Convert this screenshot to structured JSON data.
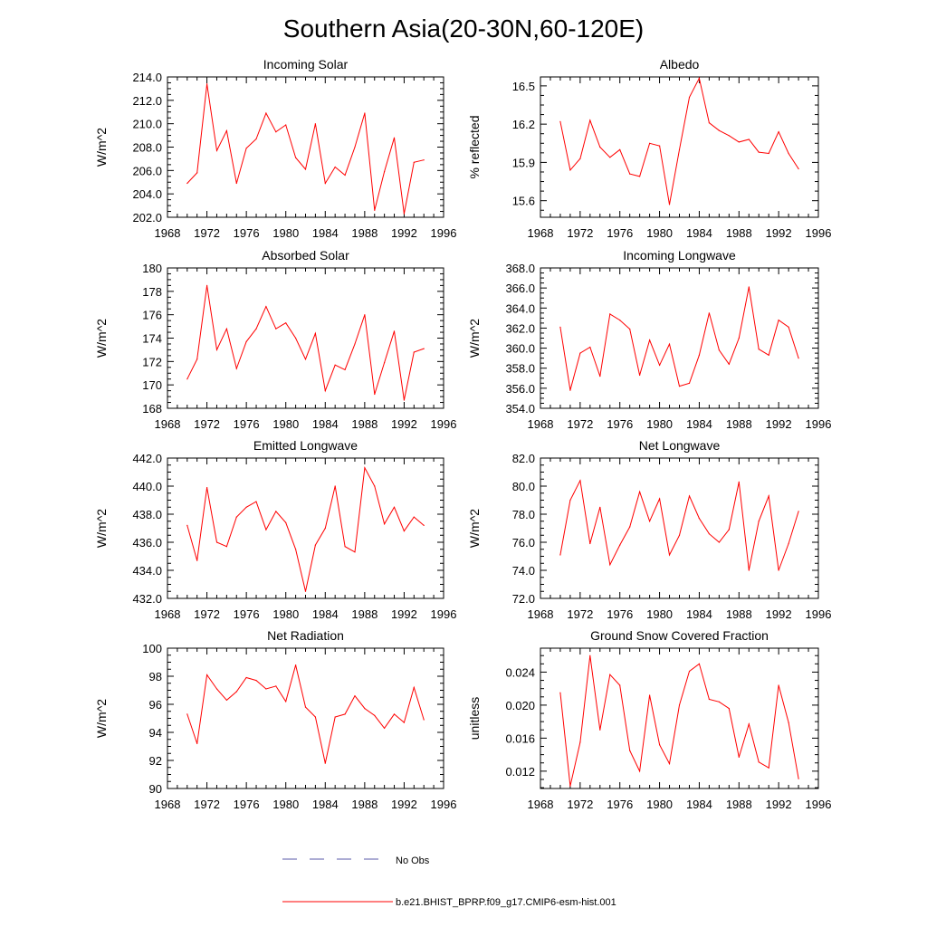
{
  "figure": {
    "title": "Southern Asia(20-30N,60-120E)",
    "legend": [
      {
        "label": "No Obs",
        "color": "#5a5aa8",
        "style": "dashed"
      },
      {
        "label": "b.e21.BHIST_BPRP.f09_g17.CMIP6-esm-hist.001",
        "color": "#ff0000",
        "style": "solid"
      }
    ]
  },
  "chart_data": [
    {
      "type": "line",
      "title": "Incoming Solar",
      "ylabel": "W/m^2",
      "xlim": [
        1968,
        1996
      ],
      "ylim": [
        202.0,
        214.0
      ],
      "x_ticks": [
        "1968",
        "1972",
        "1976",
        "1980",
        "1984",
        "1988",
        "1992",
        "1996"
      ],
      "y_ticks": [
        "202.0",
        "204.0",
        "206.0",
        "208.0",
        "210.0",
        "212.0",
        "214.0"
      ],
      "x": [
        1970,
        1971,
        1972,
        1973,
        1974,
        1975,
        1976,
        1977,
        1978,
        1979,
        1980,
        1981,
        1982,
        1983,
        1984,
        1985,
        1986,
        1987,
        1988,
        1989,
        1990,
        1991,
        1992,
        1993,
        1994
      ],
      "series": [
        {
          "name": "b.e21.BHIST_BPRP.f09_g17.CMIP6-esm-hist.001",
          "color": "#ff0000",
          "values": [
            204.9,
            205.8,
            213.4,
            207.7,
            209.4,
            204.9,
            207.9,
            208.7,
            210.9,
            209.3,
            209.9,
            207.1,
            206.1,
            210.0,
            204.9,
            206.3,
            205.6,
            208.0,
            210.9,
            202.6,
            205.9,
            208.8,
            202.3,
            206.7,
            206.9
          ]
        }
      ]
    },
    {
      "type": "line",
      "title": "Albedo",
      "ylabel": "% reflected",
      "xlim": [
        1968,
        1996
      ],
      "ylim": [
        15.47,
        16.57
      ],
      "x_ticks": [
        "1968",
        "1972",
        "1976",
        "1980",
        "1984",
        "1988",
        "1992",
        "1996"
      ],
      "y_ticks": [
        "15.6",
        "15.9",
        "16.2",
        "16.5"
      ],
      "x": [
        1970,
        1971,
        1972,
        1973,
        1974,
        1975,
        1976,
        1977,
        1978,
        1979,
        1980,
        1981,
        1982,
        1983,
        1984,
        1985,
        1986,
        1987,
        1988,
        1989,
        1990,
        1991,
        1992,
        1993,
        1994
      ],
      "series": [
        {
          "name": "b.e21.BHIST_BPRP.f09_g17.CMIP6-esm-hist.001",
          "color": "#ff0000",
          "values": [
            16.22,
            15.84,
            15.93,
            16.23,
            16.02,
            15.94,
            16.0,
            15.81,
            15.79,
            16.05,
            16.03,
            15.57,
            16.0,
            16.41,
            16.56,
            16.21,
            16.15,
            16.11,
            16.06,
            16.08,
            15.98,
            15.97,
            16.14,
            15.97,
            15.85
          ]
        }
      ]
    },
    {
      "type": "line",
      "title": "Absorbed Solar",
      "ylabel": "W/m^2",
      "xlim": [
        1968,
        1996
      ],
      "ylim": [
        168,
        180
      ],
      "x_ticks": [
        "1968",
        "1972",
        "1976",
        "1980",
        "1984",
        "1988",
        "1992",
        "1996"
      ],
      "y_ticks": [
        "168",
        "170",
        "172",
        "174",
        "176",
        "178",
        "180"
      ],
      "x": [
        1970,
        1971,
        1972,
        1973,
        1974,
        1975,
        1976,
        1977,
        1978,
        1979,
        1980,
        1981,
        1982,
        1983,
        1984,
        1985,
        1986,
        1987,
        1988,
        1989,
        1990,
        1991,
        1992,
        1993,
        1994
      ],
      "series": [
        {
          "name": "b.e21.BHIST_BPRP.f09_g17.CMIP6-esm-hist.001",
          "color": "#ff0000",
          "values": [
            170.5,
            172.2,
            178.5,
            173.0,
            174.8,
            171.4,
            173.7,
            174.8,
            176.7,
            174.8,
            175.3,
            174.0,
            172.2,
            174.4,
            169.5,
            171.7,
            171.3,
            173.5,
            176.0,
            169.2,
            171.9,
            174.6,
            168.7,
            172.8,
            173.1
          ]
        }
      ]
    },
    {
      "type": "line",
      "title": "Incoming Longwave",
      "ylabel": "W/m^2",
      "xlim": [
        1968,
        1996
      ],
      "ylim": [
        354.0,
        368.0
      ],
      "x_ticks": [
        "1968",
        "1972",
        "1976",
        "1980",
        "1984",
        "1988",
        "1992",
        "1996"
      ],
      "y_ticks": [
        "354.0",
        "356.0",
        "358.0",
        "360.0",
        "362.0",
        "364.0",
        "366.0",
        "368.0"
      ],
      "x": [
        1970,
        1971,
        1972,
        1973,
        1974,
        1975,
        1976,
        1977,
        1978,
        1979,
        1980,
        1981,
        1982,
        1983,
        1984,
        1985,
        1986,
        1987,
        1988,
        1989,
        1990,
        1991,
        1992,
        1993,
        1994
      ],
      "series": [
        {
          "name": "b.e21.BHIST_BPRP.f09_g17.CMIP6-esm-hist.001",
          "color": "#ff0000",
          "values": [
            362.1,
            355.8,
            359.5,
            360.1,
            357.2,
            363.4,
            362.8,
            361.9,
            357.3,
            360.8,
            358.3,
            360.4,
            356.2,
            356.5,
            359.3,
            363.5,
            359.8,
            358.4,
            361.0,
            366.1,
            359.9,
            359.3,
            362.8,
            362.1,
            359.0
          ]
        }
      ]
    },
    {
      "type": "line",
      "title": "Emitted Longwave",
      "ylabel": "W/m^2",
      "xlim": [
        1968,
        1996
      ],
      "ylim": [
        432.0,
        442.0
      ],
      "x_ticks": [
        "1968",
        "1972",
        "1976",
        "1980",
        "1984",
        "1988",
        "1992",
        "1996"
      ],
      "y_ticks": [
        "432.0",
        "434.0",
        "436.0",
        "438.0",
        "440.0",
        "442.0"
      ],
      "x": [
        1970,
        1971,
        1972,
        1973,
        1974,
        1975,
        1976,
        1977,
        1978,
        1979,
        1980,
        1981,
        1982,
        1983,
        1984,
        1985,
        1986,
        1987,
        1988,
        1989,
        1990,
        1991,
        1992,
        1993,
        1994
      ],
      "series": [
        {
          "name": "b.e21.BHIST_BPRP.f09_g17.CMIP6-esm-hist.001",
          "color": "#ff0000",
          "values": [
            437.2,
            434.7,
            439.9,
            436.0,
            435.7,
            437.8,
            438.5,
            438.9,
            436.9,
            438.2,
            437.4,
            435.5,
            432.5,
            435.8,
            437.0,
            440.0,
            435.7,
            435.3,
            441.3,
            440.0,
            437.3,
            438.5,
            436.8,
            437.8,
            437.2
          ]
        }
      ]
    },
    {
      "type": "line",
      "title": "Net Longwave",
      "ylabel": "W/m^2",
      "xlim": [
        1968,
        1996
      ],
      "ylim": [
        72.0,
        82.0
      ],
      "x_ticks": [
        "1968",
        "1972",
        "1976",
        "1980",
        "1984",
        "1988",
        "1992",
        "1996"
      ],
      "y_ticks": [
        "72.0",
        "74.0",
        "76.0",
        "78.0",
        "80.0",
        "82.0"
      ],
      "x": [
        1970,
        1971,
        1972,
        1973,
        1974,
        1975,
        1976,
        1977,
        1978,
        1979,
        1980,
        1981,
        1982,
        1983,
        1984,
        1985,
        1986,
        1987,
        1988,
        1989,
        1990,
        1991,
        1992,
        1993,
        1994
      ],
      "series": [
        {
          "name": "b.e21.BHIST_BPRP.f09_g17.CMIP6-esm-hist.001",
          "color": "#ff0000",
          "values": [
            75.1,
            79.0,
            80.4,
            75.9,
            78.5,
            74.4,
            75.8,
            77.1,
            79.6,
            77.5,
            79.1,
            75.1,
            76.5,
            79.3,
            77.7,
            76.6,
            76.0,
            76.9,
            80.3,
            74.0,
            77.5,
            79.3,
            74.0,
            75.9,
            78.2
          ]
        }
      ]
    },
    {
      "type": "line",
      "title": "Net Radiation",
      "ylabel": "W/m^2",
      "xlim": [
        1968,
        1996
      ],
      "ylim": [
        90,
        100
      ],
      "x_ticks": [
        "1968",
        "1972",
        "1976",
        "1980",
        "1984",
        "1988",
        "1992",
        "1996"
      ],
      "y_ticks": [
        "90",
        "92",
        "94",
        "96",
        "98",
        "100"
      ],
      "x": [
        1970,
        1971,
        1972,
        1973,
        1974,
        1975,
        1976,
        1977,
        1978,
        1979,
        1980,
        1981,
        1982,
        1983,
        1984,
        1985,
        1986,
        1987,
        1988,
        1989,
        1990,
        1991,
        1992,
        1993,
        1994
      ],
      "series": [
        {
          "name": "b.e21.BHIST_BPRP.f09_g17.CMIP6-esm-hist.001",
          "color": "#ff0000",
          "values": [
            95.3,
            93.2,
            98.1,
            97.1,
            96.3,
            96.9,
            97.9,
            97.7,
            97.1,
            97.3,
            96.2,
            98.8,
            95.8,
            95.1,
            91.8,
            95.1,
            95.3,
            96.6,
            95.7,
            95.2,
            94.3,
            95.3,
            94.7,
            97.2,
            94.9
          ]
        }
      ]
    },
    {
      "type": "line",
      "title": "Ground Snow Covered Fraction",
      "ylabel": "unitless",
      "xlim": [
        1968,
        1996
      ],
      "ylim": [
        0.0099,
        0.0269
      ],
      "x_ticks": [
        "1968",
        "1972",
        "1976",
        "1980",
        "1984",
        "1988",
        "1992",
        "1996"
      ],
      "y_ticks": [
        "0.012",
        "0.016",
        "0.020",
        "0.024"
      ],
      "x": [
        1970,
        1971,
        1972,
        1973,
        1974,
        1975,
        1976,
        1977,
        1978,
        1979,
        1980,
        1981,
        1982,
        1983,
        1984,
        1985,
        1986,
        1987,
        1988,
        1989,
        1990,
        1991,
        1992,
        1993,
        1994
      ],
      "series": [
        {
          "name": "b.e21.BHIST_BPRP.f09_g17.CMIP6-esm-hist.001",
          "color": "#ff0000",
          "values": [
            0.0215,
            0.0102,
            0.0155,
            0.026,
            0.017,
            0.0237,
            0.0224,
            0.0145,
            0.012,
            0.0212,
            0.0152,
            0.0129,
            0.02,
            0.0241,
            0.025,
            0.0207,
            0.0204,
            0.0196,
            0.0137,
            0.0177,
            0.0131,
            0.0124,
            0.0224,
            0.0179,
            0.0111
          ]
        }
      ]
    }
  ]
}
